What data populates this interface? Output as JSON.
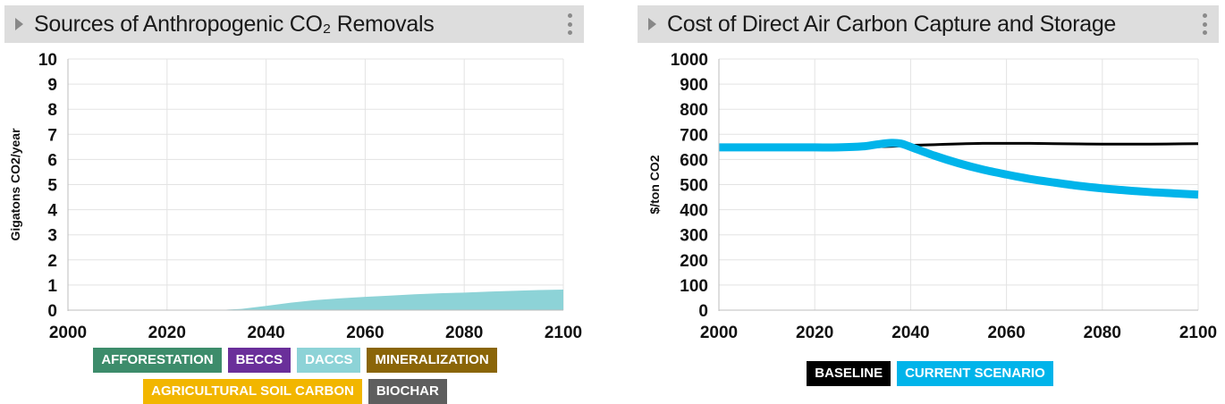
{
  "panels": [
    {
      "title": "Sources of Anthropogenic CO₂ Removals",
      "chart_data": {
        "type": "area",
        "title": "Sources of Anthropogenic CO₂ Removals",
        "ylabel": "Gigatons CO2/year",
        "xlabel": "",
        "x_ticks": [
          2000,
          2020,
          2040,
          2060,
          2080,
          2100
        ],
        "y_ticks": [
          0,
          1,
          2,
          3,
          4,
          5,
          6,
          7,
          8,
          9,
          10
        ],
        "xlim": [
          2000,
          2100
        ],
        "ylim": [
          0,
          10
        ],
        "grid": true,
        "legend_placement": "bottom",
        "x": [
          2000,
          2030,
          2035,
          2040,
          2045,
          2050,
          2055,
          2060,
          2065,
          2070,
          2075,
          2080,
          2085,
          2090,
          2095,
          2100
        ],
        "series": [
          {
            "name": "AFFORESTATION",
            "color": "#3d8c6b",
            "values": [
              0,
              0,
              0,
              0,
              0,
              0,
              0,
              0,
              0,
              0,
              0,
              0,
              0,
              0,
              0,
              0
            ]
          },
          {
            "name": "BECCS",
            "color": "#6a2f9a",
            "values": [
              0,
              0,
              0,
              0,
              0,
              0,
              0,
              0,
              0,
              0,
              0,
              0,
              0,
              0,
              0,
              0
            ]
          },
          {
            "name": "DACCS",
            "color": "#8dd3d7",
            "values": [
              0,
              0,
              0.05,
              0.17,
              0.3,
              0.4,
              0.47,
              0.53,
              0.58,
              0.63,
              0.67,
              0.7,
              0.74,
              0.77,
              0.8,
              0.82
            ]
          },
          {
            "name": "MINERALIZATION",
            "color": "#8a6508",
            "values": [
              0,
              0,
              0,
              0,
              0,
              0,
              0,
              0,
              0,
              0,
              0,
              0,
              0,
              0,
              0,
              0
            ]
          },
          {
            "name": "AGRICULTURAL SOIL CARBON",
            "color": "#f2b600",
            "values": [
              0,
              0,
              0,
              0,
              0,
              0,
              0,
              0,
              0,
              0,
              0,
              0,
              0,
              0,
              0,
              0
            ]
          },
          {
            "name": "BIOCHAR",
            "color": "#5e5e5e",
            "values": [
              0,
              0,
              0,
              0,
              0,
              0,
              0,
              0,
              0,
              0,
              0,
              0,
              0,
              0,
              0,
              0
            ]
          }
        ]
      }
    },
    {
      "title": "Cost of Direct Air Carbon Capture and Storage",
      "chart_data": {
        "type": "line",
        "title": "Cost of Direct Air Carbon Capture and Storage",
        "ylabel": "$/ton CO2",
        "xlabel": "",
        "x_ticks": [
          2000,
          2020,
          2040,
          2060,
          2080,
          2100
        ],
        "y_ticks": [
          0,
          100,
          200,
          300,
          400,
          500,
          600,
          700,
          800,
          900,
          1000
        ],
        "xlim": [
          2000,
          2100
        ],
        "ylim": [
          0,
          1000
        ],
        "grid": true,
        "legend_placement": "bottom",
        "x": [
          2000,
          2005,
          2010,
          2015,
          2020,
          2025,
          2030,
          2033,
          2036,
          2038,
          2040,
          2045,
          2050,
          2055,
          2060,
          2065,
          2070,
          2075,
          2080,
          2085,
          2090,
          2095,
          2100
        ],
        "series": [
          {
            "name": "BASELINE",
            "color": "#000000",
            "values": [
              650,
              650,
              650,
              650,
              650,
              650,
              650,
              651,
              652,
              654,
              656,
              659,
              662,
              664,
              664,
              664,
              663,
              662,
              661,
              661,
              661,
              662,
              663
            ]
          },
          {
            "name": "CURRENT SCENARIO",
            "color": "#00b4ea",
            "values": [
              648,
              648,
              648,
              648,
              648,
              648,
              652,
              660,
              666,
              663,
              650,
              615,
              585,
              560,
              540,
              522,
              508,
              495,
              485,
              477,
              470,
              465,
              460
            ]
          }
        ]
      }
    }
  ]
}
